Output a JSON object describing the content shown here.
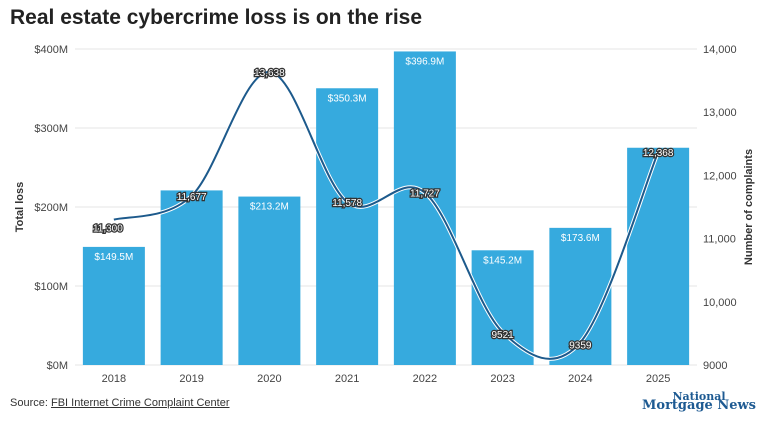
{
  "chart_data": {
    "type": "bar+line",
    "title": "Real estate cybercrime loss is on the rise",
    "categories": [
      "2018",
      "2019",
      "2020",
      "2021",
      "2022",
      "2023",
      "2024",
      "2025"
    ],
    "series": [
      {
        "name": "Total loss",
        "axis": "left",
        "type": "bar",
        "values": [
          149.5,
          221,
          213.2,
          350.3,
          396.9,
          145.2,
          173.6,
          275
        ],
        "data_labels": [
          "$149.5M",
          "",
          "$213.2M",
          "$350.3M",
          "$396.9M",
          "$145.2M",
          "$173.6M",
          ""
        ]
      },
      {
        "name": "Number of complaints",
        "axis": "right",
        "type": "line",
        "values": [
          11300,
          11677,
          13638,
          11578,
          11727,
          9521,
          9359,
          12368
        ],
        "data_labels": [
          "11,300",
          "11,677",
          "13,638",
          "11,578",
          "11,727",
          "9521",
          "9359",
          "12,368"
        ]
      }
    ],
    "ylabel": "Total loss",
    "y2label": "Number of complaints",
    "ylim": [
      0,
      400
    ],
    "y2lim": [
      9000,
      14000
    ],
    "yticks": [
      "$0M",
      "$100M",
      "$200M",
      "$300M",
      "$400M"
    ],
    "y2ticks": [
      "9000",
      "10,000",
      "11,000",
      "12,000",
      "13,000",
      "14,000"
    ],
    "grid": true,
    "colors": {
      "bar": "#36aade",
      "line": "#1d5a8c"
    }
  },
  "source_label": "Source:",
  "source_link": "FBI Internet Crime Complaint Center",
  "logo": "National Mortgage News"
}
